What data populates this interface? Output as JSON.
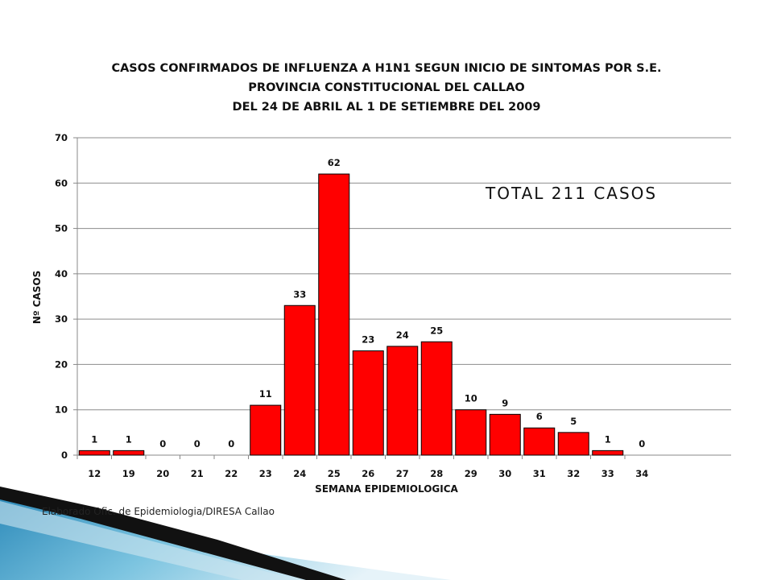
{
  "chart_data": {
    "type": "bar",
    "title_lines": [
      "CASOS CONFIRMADOS DE INFLUENZA A H1N1 SEGUN INICIO DE SINTOMAS POR S.E.",
      "PROVINCIA CONSTITUCIONAL DEL CALLAO",
      "DEL 24 DE ABRIL AL  1 DE SETIEMBRE DEL 2009"
    ],
    "categories": [
      "12",
      "19",
      "20",
      "21",
      "22",
      "23",
      "24",
      "25",
      "26",
      "27",
      "28",
      "29",
      "30",
      "31",
      "32",
      "33",
      "34"
    ],
    "values": [
      1,
      1,
      0,
      0,
      0,
      11,
      33,
      62,
      23,
      24,
      25,
      10,
      9,
      6,
      5,
      1,
      0
    ],
    "xlabel": "SEMANA EPIDEMIOLOGICA",
    "ylabel": "Nº CASOS",
    "ylim": [
      0,
      70
    ],
    "yticks": [
      0,
      10,
      20,
      30,
      40,
      50,
      60,
      70
    ],
    "grid": true,
    "bar_color": "#ff0000",
    "annotation": "TOTAL 211 CASOS"
  },
  "source_note": "Elaborado Ofic. de Epidemiologia/DIRESA Callao"
}
